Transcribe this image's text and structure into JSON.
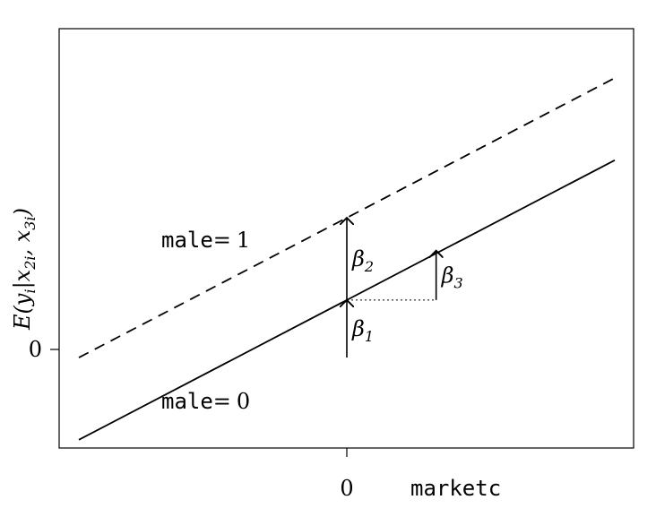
{
  "chart_data": {
    "type": "line",
    "title": "",
    "xlabel": "marketc",
    "ylabel": "E(y_i | x_2i, x_3i)",
    "x_ticks": [
      "0"
    ],
    "y_ticks": [
      "0"
    ],
    "xlim": [
      -3,
      3
    ],
    "ylim": [
      -1.1,
      4.0
    ],
    "series": [
      {
        "name": "male= 0",
        "style": "solid",
        "x": [
          -3,
          3
        ],
        "y": [
          -1,
          2.4
        ]
      },
      {
        "name": "male= 1",
        "style": "dashed",
        "x": [
          -3,
          3
        ],
        "y": [
          0,
          3.4
        ]
      }
    ],
    "annotations": {
      "beta1": {
        "x": 0,
        "y_from": 0,
        "y_to": 0.7
      },
      "beta2": {
        "x": 0,
        "y_from": 0.7,
        "y_to": 1.7
      },
      "beta3": {
        "x_from": 0,
        "x_to": 1,
        "y_from": 0.7,
        "y_to": 1.3
      }
    },
    "labels": {
      "male_word": "male",
      "male_equals": "=",
      "male0_value": "0",
      "male1_value": "1",
      "beta1": "β1",
      "beta2": "β2",
      "beta3": "β3",
      "ylabel_html": "E(y|x, x)"
    },
    "colors": {
      "axis": "#000000",
      "line": "#000000"
    }
  }
}
